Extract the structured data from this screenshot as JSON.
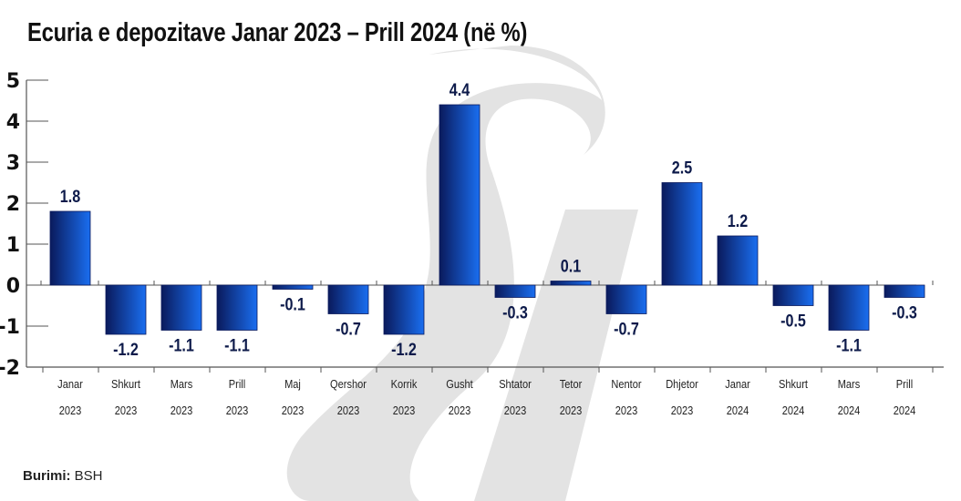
{
  "chart_data": {
    "type": "bar",
    "title": "Ecuria e depozitave Janar 2023 – Prill 2024 (në %)",
    "xlabel": "",
    "ylabel": "",
    "ylim": [
      -2,
      5
    ],
    "yticks": [
      "5",
      "4",
      "3",
      "2",
      "1",
      "0",
      "-1",
      "-2"
    ],
    "ytick_values": [
      5,
      4,
      3,
      2,
      1,
      0,
      -1,
      -2
    ],
    "categories": [
      {
        "month": "Janar",
        "year": "2023"
      },
      {
        "month": "Shkurt",
        "year": "2023"
      },
      {
        "month": "Mars",
        "year": "2023"
      },
      {
        "month": "Prill",
        "year": "2023"
      },
      {
        "month": "Maj",
        "year": "2023"
      },
      {
        "month": "Qershor",
        "year": "2023"
      },
      {
        "month": "Korrik",
        "year": "2023"
      },
      {
        "month": "Gusht",
        "year": "2023"
      },
      {
        "month": "Shtator",
        "year": "2023"
      },
      {
        "month": "Tetor",
        "year": "2023"
      },
      {
        "month": "Nentor",
        "year": "2023"
      },
      {
        "month": "Dhjetor",
        "year": "2023"
      },
      {
        "month": "Janar",
        "year": "2024"
      },
      {
        "month": "Shkurt",
        "year": "2024"
      },
      {
        "month": "Mars",
        "year": "2024"
      },
      {
        "month": "Prill",
        "year": "2024"
      }
    ],
    "values": [
      1.8,
      -1.2,
      -1.1,
      -1.1,
      -0.1,
      -0.7,
      -1.2,
      4.4,
      -0.3,
      0.1,
      -0.7,
      2.5,
      1.2,
      -0.5,
      -1.1,
      -0.3
    ],
    "data_labels": [
      "1.8",
      "-1.2",
      "-1.1",
      "-1.1",
      "-0.1",
      "-0.7",
      "-1.2",
      "4.4",
      "-0.3",
      "0.1",
      "-0.7",
      "2.5",
      "1.2",
      "-0.5",
      "-1.1",
      "-0.3"
    ],
    "grid": false,
    "legend": "none",
    "colors": {
      "bar_dark": "#0a1a5c",
      "bar_light": "#1a6ef0",
      "label": "#0d1a4a",
      "axis": "#555555",
      "watermark": "#e2e2e2"
    }
  },
  "source": {
    "label": "Burimi:",
    "value": "BSH"
  }
}
